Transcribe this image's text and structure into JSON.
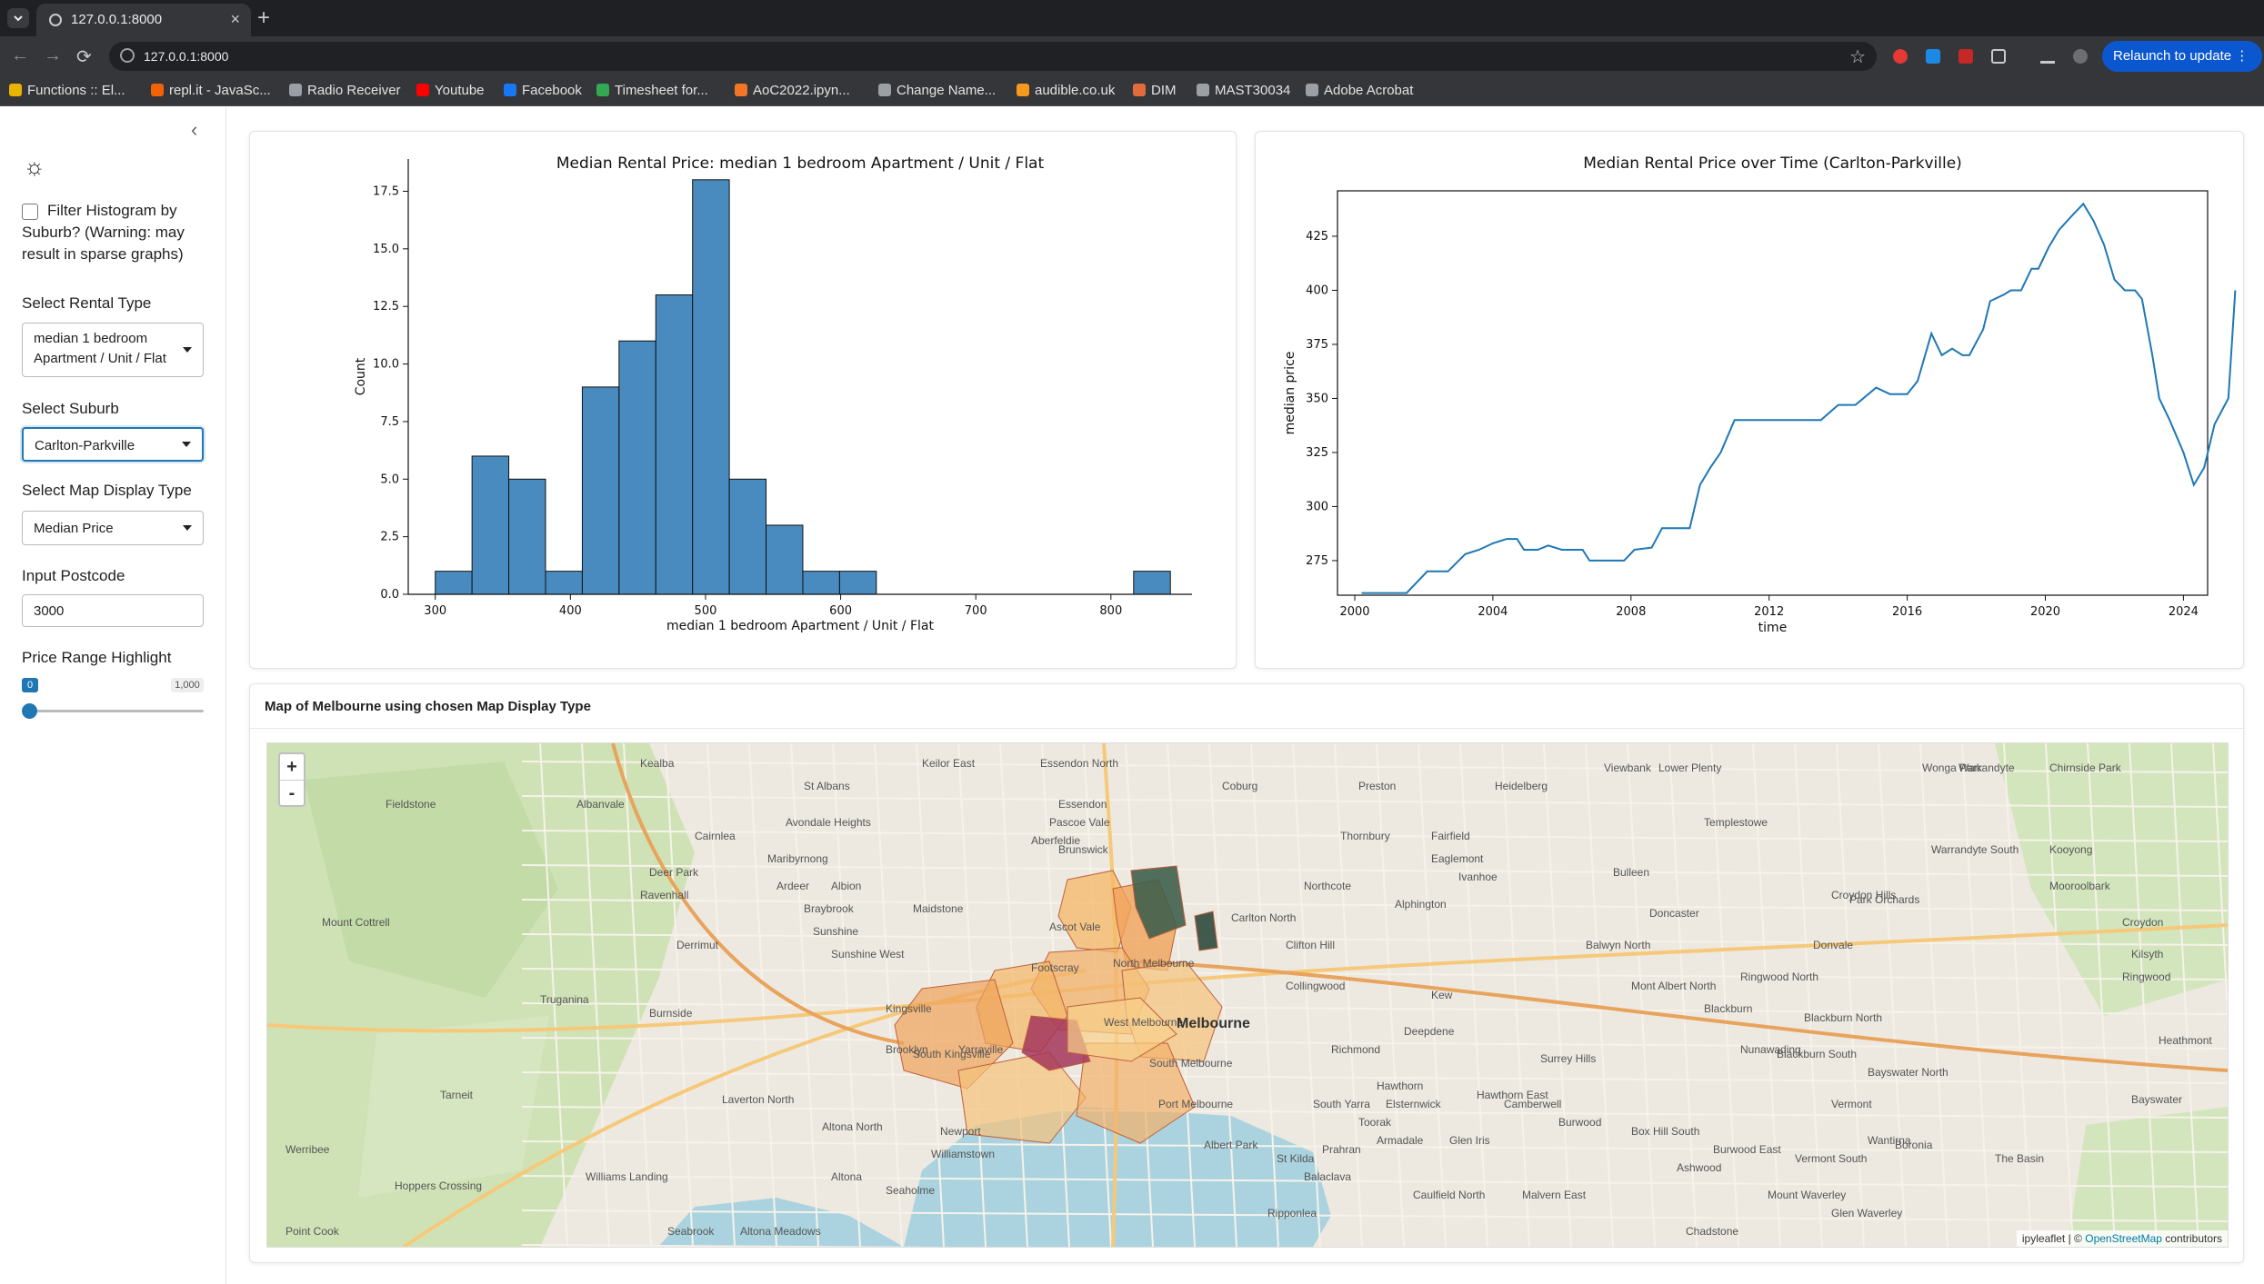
{
  "browser": {
    "tab_title": "127.0.0.1:8000",
    "url": "127.0.0.1:8000",
    "relaunch_label": "Relaunch to update",
    "bookmarks": [
      {
        "label": "Functions :: El...",
        "color": "#e8b400"
      },
      {
        "label": "repl.it - JavaSc...",
        "color": "#f26207"
      },
      {
        "label": "Radio Receiver",
        "color": "#9aa0a6"
      },
      {
        "label": "Youtube",
        "color": "#ff0000"
      },
      {
        "label": "Facebook",
        "color": "#1877f2"
      },
      {
        "label": "Timesheet for...",
        "color": "#34a853"
      },
      {
        "label": "AoC2022.ipyn...",
        "color": "#f37626"
      },
      {
        "label": "Change Name...",
        "color": "#9aa0a6"
      },
      {
        "label": "audible.co.uk",
        "color": "#f7991c"
      },
      {
        "label": "DIM",
        "color": "#e06c3c"
      },
      {
        "label": "MAST30034",
        "color": "#9aa0a6"
      },
      {
        "label": "Adobe Acrobat",
        "color": "#9aa0a6"
      }
    ]
  },
  "sidebar": {
    "filter_label": "Filter Histogram by Suburb? (Warning: may result in sparse graphs)",
    "filter_checked": false,
    "rental_type_label": "Select Rental Type",
    "rental_type_value": "median 1 bedroom Apartment / Unit / Flat",
    "suburb_label": "Select Suburb",
    "suburb_value": "Carlton-Parkville",
    "map_display_label": "Select Map Display Type",
    "map_display_value": "Median Price",
    "postcode_label": "Input Postcode",
    "postcode_value": "3000",
    "price_range_label": "Price Range Highlight",
    "price_range_min": "0",
    "price_range_max": "1,000",
    "price_range_level": 0
  },
  "histogram": {
    "chart_data": {
      "type": "bar",
      "title": "Median Rental Price: median 1 bedroom Apartment / Unit / Flat",
      "xlabel": "median 1 bedroom Apartment / Unit / Flat",
      "ylabel": "Count",
      "bin_width": 27.2,
      "bins_start": [
        300,
        327.2,
        354.4,
        381.6,
        408.8,
        436,
        463.2,
        490.4,
        517.6,
        544.8,
        572,
        599.2,
        816.8
      ],
      "values": [
        1,
        6,
        5,
        1,
        9,
        11,
        13,
        18,
        5,
        3,
        1,
        1,
        1
      ],
      "xlim": [
        280,
        860
      ],
      "ylim": [
        0,
        18.9
      ],
      "xticks": [
        300,
        400,
        500,
        600,
        700,
        800
      ],
      "yticks": [
        "0.0",
        "2.5",
        "5.0",
        "7.5",
        "10.0",
        "12.5",
        "15.0",
        "17.5"
      ],
      "bar_color": "#4a8bbf"
    }
  },
  "timeseries": {
    "chart_data": {
      "type": "line",
      "title": "Median Rental Price over Time (Carlton-Parkville)",
      "xlabel": "time",
      "ylabel": "median price",
      "xlim": [
        1999.5,
        2024.7
      ],
      "ylim": [
        259,
        446
      ],
      "xticks": [
        2000,
        2004,
        2008,
        2012,
        2016,
        2020,
        2024
      ],
      "yticks": [
        275,
        300,
        325,
        350,
        375,
        400,
        425
      ],
      "line_color": "#1f77b4",
      "points": [
        [
          2000.2,
          260
        ],
        [
          2001.5,
          260
        ],
        [
          2002.1,
          270
        ],
        [
          2002.7,
          270
        ],
        [
          2003.2,
          278
        ],
        [
          2003.6,
          280
        ],
        [
          2004.0,
          283
        ],
        [
          2004.4,
          285
        ],
        [
          2004.7,
          285
        ],
        [
          2004.9,
          280
        ],
        [
          2005.3,
          280
        ],
        [
          2005.6,
          282
        ],
        [
          2006.0,
          280
        ],
        [
          2006.6,
          280
        ],
        [
          2006.8,
          275
        ],
        [
          2007.8,
          275
        ],
        [
          2008.1,
          280
        ],
        [
          2008.6,
          281
        ],
        [
          2008.9,
          290
        ],
        [
          2009.3,
          290
        ],
        [
          2009.7,
          290
        ],
        [
          2010.0,
          310
        ],
        [
          2010.3,
          318
        ],
        [
          2010.6,
          325
        ],
        [
          2011.0,
          340
        ],
        [
          2011.6,
          340
        ],
        [
          2013.0,
          340
        ],
        [
          2013.5,
          340
        ],
        [
          2014.0,
          347
        ],
        [
          2014.5,
          347
        ],
        [
          2015.1,
          355
        ],
        [
          2015.5,
          352
        ],
        [
          2016.0,
          352
        ],
        [
          2016.3,
          358
        ],
        [
          2016.7,
          380
        ],
        [
          2017.0,
          370
        ],
        [
          2017.3,
          373
        ],
        [
          2017.6,
          370
        ],
        [
          2017.8,
          370
        ],
        [
          2018.2,
          382
        ],
        [
          2018.4,
          395
        ],
        [
          2018.8,
          398
        ],
        [
          2019.0,
          400
        ],
        [
          2019.3,
          400
        ],
        [
          2019.6,
          410
        ],
        [
          2019.8,
          410
        ],
        [
          2020.1,
          420
        ],
        [
          2020.4,
          428
        ],
        [
          2020.8,
          435
        ],
        [
          2021.1,
          440
        ],
        [
          2021.4,
          432
        ],
        [
          2021.7,
          421
        ],
        [
          2022.0,
          405
        ],
        [
          2022.3,
          400
        ],
        [
          2022.6,
          400
        ],
        [
          2022.8,
          396
        ],
        [
          2023.1,
          370
        ],
        [
          2023.3,
          350
        ],
        [
          2023.6,
          340
        ],
        [
          2024.0,
          325
        ],
        [
          2024.3,
          310
        ],
        [
          2024.6,
          318
        ],
        [
          2024.9,
          338
        ],
        [
          2025.3,
          350
        ],
        [
          2025.5,
          400
        ]
      ]
    }
  },
  "map": {
    "title": "Map of Melbourne using chosen Map Display Type",
    "zoom_in": "+",
    "zoom_out": "-",
    "attribution_prefix": "ipyleaflet | ©",
    "attribution_link": "OpenStreetMap",
    "attribution_suffix": "contributors",
    "place_labels": [
      "Fieldstone",
      "Mount Cottrell",
      "Truganina",
      "Tarneit",
      "Werribee",
      "Hoppers Crossing",
      "Williams Landing",
      "Point Cook",
      "Laverton North",
      "Altona North",
      "Altona",
      "Seabrook",
      "Altona Meadows",
      "Seaholme",
      "Williamstown",
      "Newport",
      "Yarraville",
      "Footscray",
      "Brooklyn",
      "Deer Park",
      "Cairnlea",
      "St Albans",
      "Keilor East",
      "Essendon North",
      "Essendon",
      "Coburg",
      "Brunswick",
      "Carlton North",
      "Clifton Hill",
      "Collingwood",
      "Richmond",
      "Hawthorn",
      "Kew",
      "Camberwell",
      "Box Hill South",
      "Doncaster",
      "Ringwood North",
      "Croydon Hills",
      "Bayswater North",
      "Boronia",
      "The Basin",
      "Wonga Park",
      "Chirnside Park",
      "Warrandyte",
      "Templestowe",
      "Heidelberg",
      "Northcote",
      "Thornbury",
      "Preston",
      "Lower Plenty",
      "Viewbank",
      "Bulleen",
      "Balwyn North",
      "Mont Albert North",
      "Blackburn",
      "Nunawading",
      "Vermont",
      "Wantirna",
      "Glen Waverley",
      "Mount Waverley",
      "Ashwood",
      "Malvern East",
      "Caulfield North",
      "Prahran",
      "South Yarra",
      "St Kilda",
      "Albert Park",
      "Port Melbourne",
      "South Melbourne",
      "West Melbourne",
      "North Melbourne",
      "Melbourne",
      "Toorak",
      "Armadale",
      "Glen Iris",
      "Hawthorn East",
      "Burwood",
      "Kilsyth",
      "Croydon",
      "Ringwood",
      "Heathmont",
      "Bayswater",
      "Maribyrnong",
      "Avondale Heights",
      "Braybrook",
      "Sunshine",
      "Sunshine West",
      "Maidstone",
      "Kingsville",
      "South Kingsville",
      "Ascot Vale",
      "Pascoe Vale",
      "Alphington",
      "Fairfield",
      "Eaglemont",
      "Ivanhoe",
      "Burwood East",
      "Vermont South",
      "Balaclava",
      "Ripponlea",
      "Chadstone",
      "Ardeer",
      "Albion",
      "Ravenhall",
      "Derrimut",
      "Burnside",
      "Kealba",
      "Albanvale",
      "Aberfeldie",
      "Surrey Hills",
      "Deepdene",
      "Blackburn North",
      "Blackburn South",
      "Park Orchards",
      "Donvale",
      "Warrandyte South",
      "Mooroolbark",
      "Kooyong",
      "Elsternwick"
    ]
  }
}
